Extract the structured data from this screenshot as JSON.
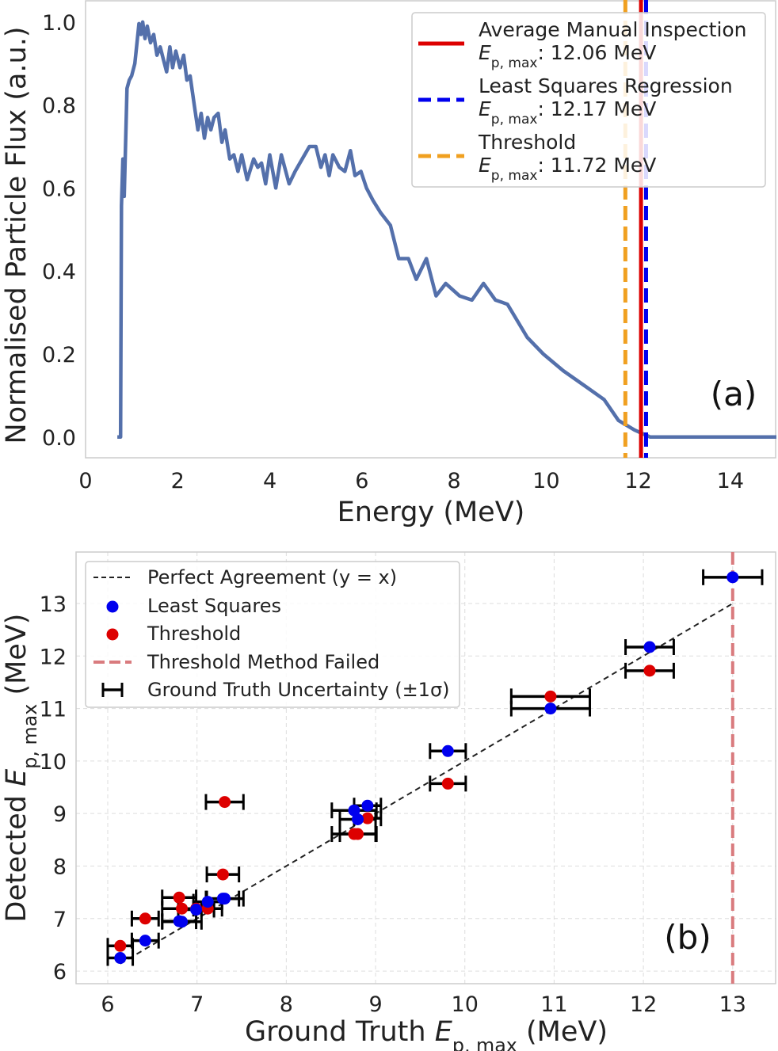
{
  "chart_data": [
    {
      "type": "line",
      "panel_label": "(a)",
      "xlabel": "Energy (MeV)",
      "ylabel": "Normalised Particle Flux (a.u.)",
      "xlim": [
        0,
        15
      ],
      "ylim": [
        -0.05,
        1.053
      ],
      "xticks": [
        0,
        2,
        4,
        6,
        8,
        10,
        12,
        14
      ],
      "xtick_labels": [
        "0",
        "2",
        "4",
        "6",
        "8",
        "10",
        "12",
        "14"
      ],
      "yticks": [
        0,
        0.2,
        0.4,
        0.6,
        0.8,
        1.0
      ],
      "ytick_labels": [
        "0.0",
        "0.2",
        "0.4",
        "0.6",
        "0.8",
        "1.0"
      ],
      "grid": false,
      "legend_position": "top-right",
      "colors": {
        "spectrum": "#5470ab",
        "manual": "#dd0000",
        "least_squares": "#0000ee",
        "threshold": "#f0a020"
      },
      "spectrum": {
        "x": [
          0.69,
          0.76,
          0.78,
          0.81,
          0.84,
          0.9,
          0.95,
          1.0,
          1.07,
          1.16,
          1.2,
          1.24,
          1.29,
          1.34,
          1.41,
          1.48,
          1.55,
          1.62,
          1.69,
          1.76,
          1.83,
          1.89,
          1.96,
          2.05,
          2.13,
          2.2,
          2.27,
          2.36,
          2.44,
          2.51,
          2.58,
          2.65,
          2.72,
          2.79,
          2.88,
          2.96,
          3.03,
          3.13,
          3.22,
          3.31,
          3.39,
          3.51,
          3.65,
          3.74,
          3.82,
          3.91,
          4.0,
          4.13,
          4.25,
          4.42,
          4.55,
          4.86,
          5.0,
          5.11,
          5.2,
          5.29,
          5.37,
          5.51,
          5.63,
          5.75,
          5.85,
          5.98,
          6.1,
          6.24,
          6.41,
          6.62,
          6.8,
          7.01,
          7.18,
          7.4,
          7.61,
          7.82,
          8.12,
          8.39,
          8.64,
          8.9,
          9.16,
          9.59,
          9.94,
          10.37,
          10.88,
          11.26,
          11.57,
          11.92,
          12.26,
          15.0
        ],
        "y": [
          0,
          0,
          0.557,
          0.67,
          0.58,
          0.84,
          0.86,
          0.87,
          0.9,
          0.996,
          0.97,
          1.0,
          0.96,
          0.99,
          0.95,
          0.97,
          0.92,
          0.94,
          0.91,
          0.88,
          0.94,
          0.89,
          0.93,
          0.89,
          0.92,
          0.86,
          0.87,
          0.8,
          0.74,
          0.78,
          0.72,
          0.77,
          0.74,
          0.77,
          0.78,
          0.71,
          0.74,
          0.67,
          0.68,
          0.64,
          0.68,
          0.62,
          0.67,
          0.65,
          0.66,
          0.61,
          0.68,
          0.6,
          0.68,
          0.61,
          0.64,
          0.7,
          0.7,
          0.65,
          0.68,
          0.63,
          0.68,
          0.65,
          0.64,
          0.69,
          0.63,
          0.64,
          0.6,
          0.57,
          0.54,
          0.51,
          0.43,
          0.43,
          0.38,
          0.43,
          0.34,
          0.37,
          0.34,
          0.33,
          0.37,
          0.33,
          0.32,
          0.24,
          0.2,
          0.16,
          0.12,
          0.09,
          0.04,
          0.017,
          0,
          0
        ]
      },
      "vlines": [
        {
          "name": "Average Manual Inspection",
          "value_label": "12.06 MeV",
          "x": 12.06,
          "style": "solid",
          "color": "#dd0000"
        },
        {
          "name": "Least Squares Regression",
          "value_label": "12.17 MeV",
          "x": 12.17,
          "style": "dashed",
          "color": "#0000ee"
        },
        {
          "name": "Threshold",
          "value_label": "11.72 MeV",
          "x": 11.72,
          "style": "dashed",
          "color": "#f0a020"
        }
      ],
      "legend_symbol": {
        "E": "E",
        "sub": "p, max"
      }
    },
    {
      "type": "scatter",
      "panel_label": "(b)",
      "xlabel": {
        "prefix": "Ground Truth ",
        "E": "E",
        "sub": "p, max",
        "suffix": " (MeV)"
      },
      "ylabel": {
        "prefix": "Detected ",
        "E": "E",
        "sub": "p, max",
        "suffix": " (MeV)"
      },
      "xlim": [
        5.645,
        13.49
      ],
      "ylim": [
        5.76,
        13.98
      ],
      "xticks": [
        6,
        7,
        8,
        9,
        10,
        11,
        12,
        13
      ],
      "xtick_labels": [
        "6",
        "7",
        "8",
        "9",
        "10",
        "11",
        "12",
        "13"
      ],
      "yticks": [
        6,
        7,
        8,
        9,
        10,
        11,
        12,
        13
      ],
      "ytick_labels": [
        "6",
        "7",
        "8",
        "9",
        "10",
        "11",
        "12",
        "13"
      ],
      "grid": true,
      "legend_position": "top-left",
      "legend": [
        "Perfect Agreement (y = x)",
        "Least Squares",
        "Threshold",
        "Threshold Method Failed",
        "Ground Truth Uncertainty (±1σ)"
      ],
      "colors": {
        "least_squares": "#0000ee",
        "threshold": "#dd0000",
        "failed": "#d97b7e",
        "agreement": "#222222",
        "errorbar": "#000000"
      },
      "perfect_agreement": [
        6.14,
        13.0
      ],
      "failed_x": 13.0,
      "ground_truth": [
        6.14,
        6.42,
        6.8,
        6.83,
        6.99,
        7.12,
        7.29,
        7.31,
        8.76,
        8.8,
        8.91,
        9.81,
        10.96,
        12.07,
        13.0
      ],
      "ground_truth_err": [
        0.14,
        0.15,
        0.19,
        0.22,
        0.2,
        0.16,
        0.18,
        0.21,
        0.25,
        0.2,
        0.15,
        0.2,
        0.44,
        0.27,
        0.33
      ],
      "least_squares": [
        6.25,
        6.58,
        6.95,
        6.94,
        7.17,
        7.32,
        7.38,
        7.38,
        9.06,
        8.89,
        9.15,
        10.19,
        11.0,
        12.17,
        13.5
      ],
      "threshold": [
        6.48,
        7.0,
        7.4,
        7.19,
        7.19,
        7.19,
        7.84,
        9.22,
        8.61,
        8.61,
        8.91,
        9.57,
        11.23,
        11.72,
        null
      ]
    }
  ]
}
